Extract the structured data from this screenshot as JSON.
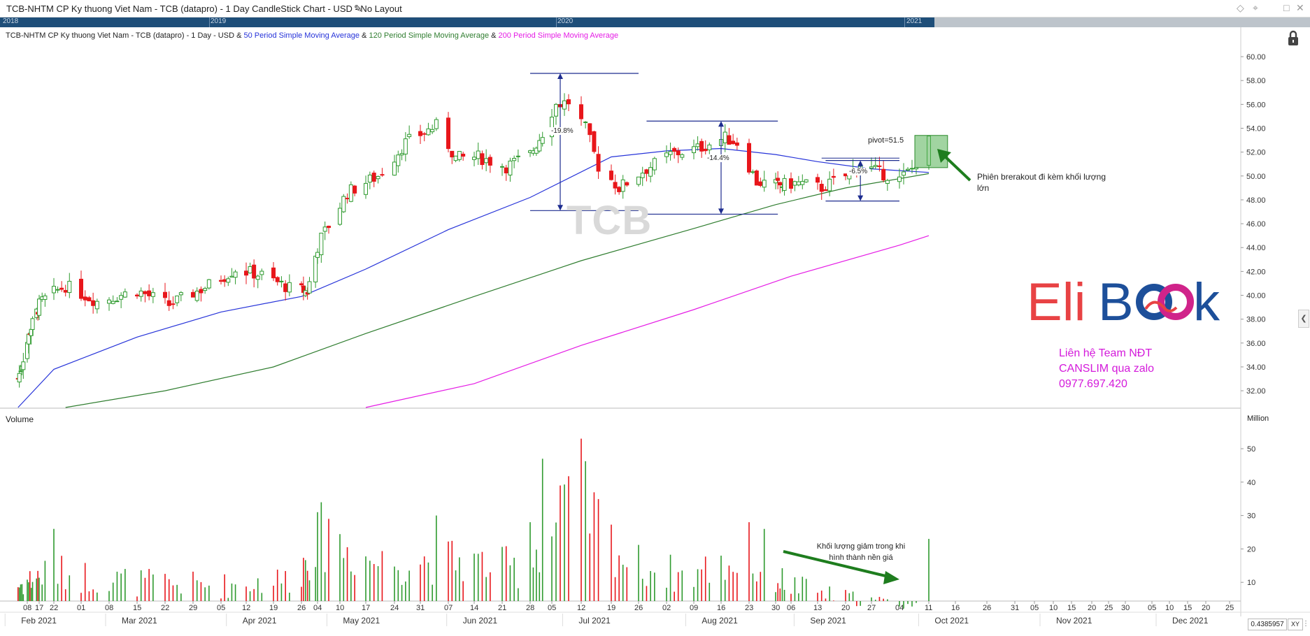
{
  "window": {
    "title": "TCB-NHTM CP Ky thuong Viet Nam - TCB (datapro) - 1 Day CandleStick Chart - USD - No Layout"
  },
  "navigator": {
    "years": [
      "2018",
      "2019",
      "2020",
      "2021"
    ]
  },
  "legend": {
    "base": "TCB-NHTM CP Ky thuong Viet Nam - TCB (datapro) - 1 Day - USD & ",
    "sma50": "50 Period Simple Moving Average",
    "amp1": " & ",
    "sma120": "120 Period Simple Moving Average",
    "amp2": " & ",
    "sma200": "200 Period Simple Moving Average"
  },
  "colors": {
    "up": "#2e9a2e",
    "down": "#e8161b",
    "sma50": "#2633d9",
    "sma120": "#2f7d2f",
    "sma200": "#e51ce5",
    "arrow": "#1e7d1e",
    "bracket": "#1d2c8f",
    "navbar": "#1e4e79"
  },
  "watermark": "TCB",
  "logo": {
    "text_a": "Eli",
    "text_b": "B",
    "text_c": "k"
  },
  "contact": {
    "line1": "Liên hệ Team NĐT",
    "line2": "CANSLIM qua zalo",
    "line3": "0977.697.420"
  },
  "annotations": {
    "pivot": "pivot=51.5",
    "breakout": "Phiên brerakout đi kèm khối lượng lớn",
    "volume_dry": "Khối lượng giảm trong khi hình thành nền giá",
    "pct1": "-19.8%",
    "pct2": "-14.4%",
    "pct3": "-6.5%"
  },
  "panels": {
    "volume_label": "Volume",
    "million_label": "Million"
  },
  "zoom_readout": "0.4385957",
  "xy_button": "XY",
  "chart_data": {
    "type": "candlestick",
    "title": "TCB-NHTM CP Ky thuong Viet Nam - TCB (datapro) - 1 Day CandleStick Chart - USD",
    "price_axis": {
      "ticks": [
        "60.00",
        "58.00",
        "56.00",
        "54.00",
        "52.00",
        "50.00",
        "48.00",
        "46.00",
        "44.00",
        "42.00",
        "40.00",
        "38.00",
        "36.00",
        "34.00",
        "32.00"
      ],
      "ylim": [
        30.6,
        61.0
      ],
      "side": "right"
    },
    "volume_axis": {
      "ticks": [
        "50",
        "40",
        "30",
        "20",
        "10"
      ],
      "ylim": [
        0,
        60
      ],
      "unit": "Million"
    },
    "day_ticks": [
      {
        "label": "08",
        "date": "2021-02-08"
      },
      {
        "label": "17",
        "date": "2021-02-17"
      },
      {
        "label": "22",
        "date": "2021-02-22"
      },
      {
        "label": "01",
        "date": "2021-03-01"
      },
      {
        "label": "08",
        "date": "2021-03-08"
      },
      {
        "label": "15",
        "date": "2021-03-15"
      },
      {
        "label": "22",
        "date": "2021-03-22"
      },
      {
        "label": "29",
        "date": "2021-03-29"
      },
      {
        "label": "05",
        "date": "2021-04-05"
      },
      {
        "label": "12",
        "date": "2021-04-12"
      },
      {
        "label": "19",
        "date": "2021-04-19"
      },
      {
        "label": "26",
        "date": "2021-04-26"
      },
      {
        "label": "04",
        "date": "2021-05-04"
      },
      {
        "label": "10",
        "date": "2021-05-10"
      },
      {
        "label": "17",
        "date": "2021-05-17"
      },
      {
        "label": "24",
        "date": "2021-05-24"
      },
      {
        "label": "31",
        "date": "2021-05-31"
      },
      {
        "label": "07",
        "date": "2021-06-07"
      },
      {
        "label": "14",
        "date": "2021-06-14"
      },
      {
        "label": "21",
        "date": "2021-06-21"
      },
      {
        "label": "28",
        "date": "2021-06-28"
      },
      {
        "label": "05",
        "date": "2021-07-05"
      },
      {
        "label": "12",
        "date": "2021-07-12"
      },
      {
        "label": "19",
        "date": "2021-07-19"
      },
      {
        "label": "26",
        "date": "2021-07-26"
      },
      {
        "label": "02",
        "date": "2021-08-02"
      },
      {
        "label": "09",
        "date": "2021-08-09"
      },
      {
        "label": "16",
        "date": "2021-08-16"
      },
      {
        "label": "23",
        "date": "2021-08-23"
      },
      {
        "label": "30",
        "date": "2021-08-30"
      },
      {
        "label": "06",
        "date": "2021-09-06"
      },
      {
        "label": "13",
        "date": "2021-09-13"
      },
      {
        "label": "20",
        "date": "2021-09-20"
      },
      {
        "label": "27",
        "date": "2021-09-27"
      },
      {
        "label": "04",
        "date": "2021-10-04"
      },
      {
        "label": "11",
        "date": "2021-10-11"
      },
      {
        "label": "16",
        "date": "2021-10-16"
      },
      {
        "label": "26",
        "date": "2021-10-26"
      },
      {
        "label": "31",
        "date": "2021-10-31"
      },
      {
        "label": "05",
        "date": "2021-11-05"
      },
      {
        "label": "10",
        "date": "2021-11-10"
      },
      {
        "label": "15",
        "date": "2021-11-15"
      },
      {
        "label": "20",
        "date": "2021-11-20"
      },
      {
        "label": "25",
        "date": "2021-11-25"
      },
      {
        "label": "30",
        "date": "2021-11-30"
      },
      {
        "label": "05",
        "date": "2021-12-05"
      },
      {
        "label": "10",
        "date": "2021-12-10"
      },
      {
        "label": "15",
        "date": "2021-12-15"
      },
      {
        "label": "20",
        "date": "2021-12-20"
      },
      {
        "label": "25",
        "date": "2021-12-25"
      }
    ],
    "months": [
      {
        "label": "Feb 2021",
        "date": "2021-02-15"
      },
      {
        "label": "Mar 2021",
        "date": "2021-03-15"
      },
      {
        "label": "Apr 2021",
        "date": "2021-04-15"
      },
      {
        "label": "May 2021",
        "date": "2021-05-15"
      },
      {
        "label": "Jun 2021",
        "date": "2021-06-15"
      },
      {
        "label": "Jul 2021",
        "date": "2021-07-15"
      },
      {
        "label": "Aug 2021",
        "date": "2021-08-15"
      },
      {
        "label": "Sep 2021",
        "date": "2021-09-15"
      },
      {
        "label": "Oct 2021",
        "date": "2021-10-15"
      },
      {
        "label": "Nov 2021",
        "date": "2021-11-15"
      },
      {
        "label": "Dec 2021",
        "date": "2021-12-15"
      }
    ],
    "price_path": [
      [
        "2021-02-01",
        33.0
      ],
      [
        "2021-02-10",
        37.0
      ],
      [
        "2021-02-18",
        39.5
      ],
      [
        "2021-02-25",
        40.8
      ],
      [
        "2021-03-05",
        39.5
      ],
      [
        "2021-03-15",
        40.4
      ],
      [
        "2021-03-23",
        39.2
      ],
      [
        "2021-03-31",
        40.5
      ],
      [
        "2021-04-09",
        42.2
      ],
      [
        "2021-04-16",
        41.7
      ],
      [
        "2021-04-23",
        40.6
      ],
      [
        "2021-04-29",
        40.3
      ],
      [
        "2021-05-05",
        44.8
      ],
      [
        "2021-05-12",
        48.6
      ],
      [
        "2021-05-20",
        50.0
      ],
      [
        "2021-05-27",
        52.8
      ],
      [
        "2021-06-04",
        54.2
      ],
      [
        "2021-06-09",
        51.5
      ],
      [
        "2021-06-15",
        51.6
      ],
      [
        "2021-06-22",
        50.8
      ],
      [
        "2021-06-28",
        51.8
      ],
      [
        "2021-07-02",
        53.6
      ],
      [
        "2021-07-06",
        56.0
      ],
      [
        "2021-07-09",
        56.2
      ],
      [
        "2021-07-13",
        54.0
      ],
      [
        "2021-07-16",
        50.8
      ],
      [
        "2021-07-21",
        49.0
      ],
      [
        "2021-07-27",
        50.4
      ],
      [
        "2021-08-03",
        51.8
      ],
      [
        "2021-08-10",
        52.3
      ],
      [
        "2021-08-17",
        53.2
      ],
      [
        "2021-08-20",
        52.8
      ],
      [
        "2021-08-25",
        49.5
      ],
      [
        "2021-08-31",
        49.2
      ],
      [
        "2021-09-08",
        49.4
      ],
      [
        "2021-09-14",
        49.0
      ],
      [
        "2021-09-20",
        50.0
      ],
      [
        "2021-09-24",
        51.0
      ],
      [
        "2021-09-29",
        50.3
      ],
      [
        "2021-10-04",
        49.7
      ],
      [
        "2021-10-07",
        50.6
      ],
      [
        "2021-10-11",
        52.9
      ]
    ],
    "sma50": [
      [
        "2021-02-01",
        30.6
      ],
      [
        "2021-02-22",
        33.8
      ],
      [
        "2021-03-15",
        36.5
      ],
      [
        "2021-04-05",
        38.6
      ],
      [
        "2021-04-26",
        39.9
      ],
      [
        "2021-05-17",
        42.2
      ],
      [
        "2021-06-07",
        45.5
      ],
      [
        "2021-06-28",
        48.2
      ],
      [
        "2021-07-19",
        51.6
      ],
      [
        "2021-08-02",
        52.1
      ],
      [
        "2021-08-16",
        52.3
      ],
      [
        "2021-08-30",
        51.8
      ],
      [
        "2021-09-13",
        51.2
      ],
      [
        "2021-09-27",
        50.6
      ],
      [
        "2021-10-11",
        50.3
      ]
    ],
    "sma120": [
      [
        "2021-02-25",
        30.6
      ],
      [
        "2021-03-22",
        32.0
      ],
      [
        "2021-04-19",
        34.0
      ],
      [
        "2021-05-17",
        36.8
      ],
      [
        "2021-06-14",
        39.9
      ],
      [
        "2021-07-12",
        42.9
      ],
      [
        "2021-08-09",
        45.6
      ],
      [
        "2021-08-30",
        47.6
      ],
      [
        "2021-09-20",
        49.0
      ],
      [
        "2021-10-11",
        50.2
      ]
    ],
    "sma200": [
      [
        "2021-05-17",
        30.6
      ],
      [
        "2021-06-14",
        32.6
      ],
      [
        "2021-07-12",
        35.8
      ],
      [
        "2021-08-09",
        38.8
      ],
      [
        "2021-09-06",
        41.6
      ],
      [
        "2021-10-04",
        44.2
      ],
      [
        "2021-10-11",
        45.0
      ]
    ],
    "volume_path": [
      [
        "2021-02-01",
        9
      ],
      [
        "2021-02-22",
        13
      ],
      [
        "2021-03-15",
        10
      ],
      [
        "2021-04-05",
        9
      ],
      [
        "2021-04-23",
        11
      ],
      [
        "2021-05-04",
        24
      ],
      [
        "2021-05-20",
        16
      ],
      [
        "2021-06-07",
        17
      ],
      [
        "2021-06-25",
        14
      ],
      [
        "2021-07-05",
        26
      ],
      [
        "2021-07-12",
        34
      ],
      [
        "2021-07-23",
        16
      ],
      [
        "2021-08-06",
        12
      ],
      [
        "2021-08-20",
        16
      ],
      [
        "2021-09-03",
        10
      ],
      [
        "2021-09-17",
        6
      ],
      [
        "2021-10-01",
        4
      ],
      [
        "2021-10-08",
        3
      ],
      [
        "2021-10-11",
        23
      ]
    ],
    "volume_spikes": [
      [
        "2021-07-02",
        47
      ],
      [
        "2021-07-07",
        39
      ],
      [
        "2021-07-12",
        53
      ],
      [
        "2021-05-04",
        31
      ],
      [
        "2021-05-07",
        29
      ],
      [
        "2021-06-04",
        30
      ],
      [
        "2021-06-28",
        28
      ],
      [
        "2021-02-22",
        26
      ],
      [
        "2021-08-23",
        28
      ],
      [
        "2021-08-27",
        26
      ],
      [
        "2021-10-11",
        23
      ]
    ],
    "shapes": {
      "bracket1": {
        "top": 58.6,
        "bottom": 47.1,
        "from": "2021-06-28",
        "to": "2021-07-26",
        "arrow_date": "2021-07-07"
      },
      "bracket2": {
        "top": 54.6,
        "bottom": 46.8,
        "from": "2021-07-28",
        "to": "2021-08-31",
        "arrow_date": "2021-08-16"
      },
      "bracket3": {
        "top": 51.3,
        "bottom": 47.9,
        "from": "2021-09-15",
        "to": "2021-10-04",
        "arrow_date": "2021-09-24"
      },
      "breakout_box": {
        "top": 53.4,
        "bottom": 50.7,
        "from": "2021-10-08",
        "to": "2021-10-14"
      }
    },
    "grid": false,
    "legend_position": "top-left"
  }
}
